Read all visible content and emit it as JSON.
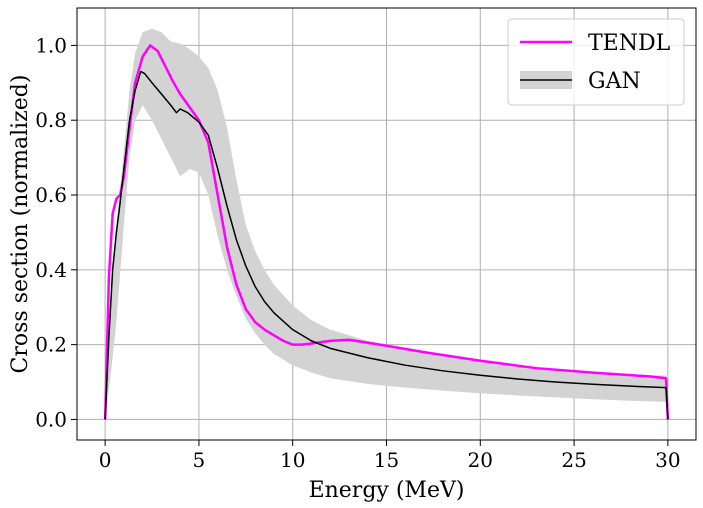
{
  "chart_data": {
    "type": "line",
    "title": "",
    "xlabel": "Energy (MeV)",
    "ylabel": "Cross section (normalized)",
    "xlim": [
      -1.5,
      31.5
    ],
    "ylim": [
      -0.055,
      1.1
    ],
    "grid": true,
    "legend_position": "top-right",
    "x_ticks": [
      0,
      5,
      10,
      15,
      20,
      25,
      30
    ],
    "y_ticks": [
      0.0,
      0.2,
      0.4,
      0.6,
      0.8,
      1.0
    ],
    "x_tick_labels": [
      "0",
      "5",
      "10",
      "15",
      "20",
      "25",
      "30"
    ],
    "y_tick_labels": [
      "0.0",
      "0.2",
      "0.4",
      "0.6",
      "0.8",
      "1.0"
    ],
    "colors": {
      "tendl": "#ff00ff",
      "gan": "#000000",
      "band": "#d3d3d3",
      "grid": "#b0b0b0"
    },
    "series": [
      {
        "name": "TENDL",
        "x": [
          0,
          0.2,
          0.4,
          0.6,
          0.8,
          1.0,
          1.3,
          1.6,
          2.0,
          2.4,
          2.8,
          3.2,
          3.6,
          4.0,
          4.5,
          5.0,
          5.5,
          6.0,
          6.5,
          7.0,
          7.5,
          8.0,
          8.5,
          9.0,
          9.5,
          10.0,
          10.5,
          11.0,
          12.0,
          13.0,
          14.0,
          15.0,
          17.0,
          20.0,
          23.0,
          26.0,
          29.0,
          29.9,
          30.0
        ],
        "y": [
          0.0,
          0.38,
          0.55,
          0.59,
          0.6,
          0.65,
          0.78,
          0.9,
          0.97,
          1.0,
          0.985,
          0.945,
          0.905,
          0.87,
          0.835,
          0.8,
          0.74,
          0.6,
          0.46,
          0.36,
          0.295,
          0.26,
          0.24,
          0.225,
          0.21,
          0.2,
          0.2,
          0.203,
          0.21,
          0.213,
          0.205,
          0.197,
          0.18,
          0.157,
          0.137,
          0.125,
          0.115,
          0.11,
          0.0
        ]
      },
      {
        "name": "GAN",
        "x": [
          0,
          0.2,
          0.4,
          0.6,
          0.8,
          1.0,
          1.3,
          1.6,
          1.9,
          2.1,
          2.5,
          3.0,
          3.5,
          3.8,
          4.0,
          4.4,
          5.0,
          5.5,
          6.0,
          6.5,
          7.0,
          7.5,
          8.0,
          8.5,
          9.0,
          10.0,
          11.0,
          12.0,
          14.0,
          16.0,
          18.0,
          20.0,
          22.0,
          24.0,
          26.0,
          28.0,
          29.9,
          30.0
        ],
        "y": [
          0.0,
          0.22,
          0.4,
          0.5,
          0.58,
          0.67,
          0.8,
          0.88,
          0.93,
          0.925,
          0.9,
          0.87,
          0.84,
          0.82,
          0.83,
          0.82,
          0.795,
          0.76,
          0.67,
          0.57,
          0.48,
          0.41,
          0.355,
          0.315,
          0.285,
          0.24,
          0.21,
          0.19,
          0.165,
          0.145,
          0.13,
          0.118,
          0.108,
          0.1,
          0.094,
          0.089,
          0.085,
          0.0
        ]
      }
    ],
    "band": {
      "name": "GAN",
      "x": [
        0,
        0.3,
        0.6,
        1.0,
        1.3,
        1.6,
        2.0,
        2.5,
        3.0,
        3.5,
        4.0,
        4.5,
        5.0,
        5.5,
        6.0,
        6.5,
        7.0,
        7.5,
        8.0,
        8.5,
        9.0,
        10.0,
        11.0,
        12.0,
        14.0,
        16.0,
        18.0,
        20.0,
        22.0,
        24.0,
        26.0,
        28.0,
        29.9,
        30.0
      ],
      "upper": [
        0.0,
        0.34,
        0.52,
        0.72,
        0.88,
        0.98,
        1.035,
        1.045,
        1.035,
        1.01,
        1.005,
        0.99,
        0.97,
        0.94,
        0.88,
        0.78,
        0.64,
        0.52,
        0.45,
        0.4,
        0.36,
        0.305,
        0.265,
        0.24,
        0.21,
        0.19,
        0.17,
        0.155,
        0.143,
        0.133,
        0.125,
        0.12,
        0.117,
        0.0
      ],
      "lower": [
        0.0,
        0.12,
        0.26,
        0.52,
        0.7,
        0.8,
        0.84,
        0.8,
        0.75,
        0.7,
        0.65,
        0.67,
        0.66,
        0.6,
        0.49,
        0.4,
        0.33,
        0.27,
        0.23,
        0.2,
        0.175,
        0.145,
        0.125,
        0.11,
        0.095,
        0.085,
        0.077,
        0.07,
        0.064,
        0.059,
        0.054,
        0.05,
        0.047,
        0.0
      ]
    }
  }
}
